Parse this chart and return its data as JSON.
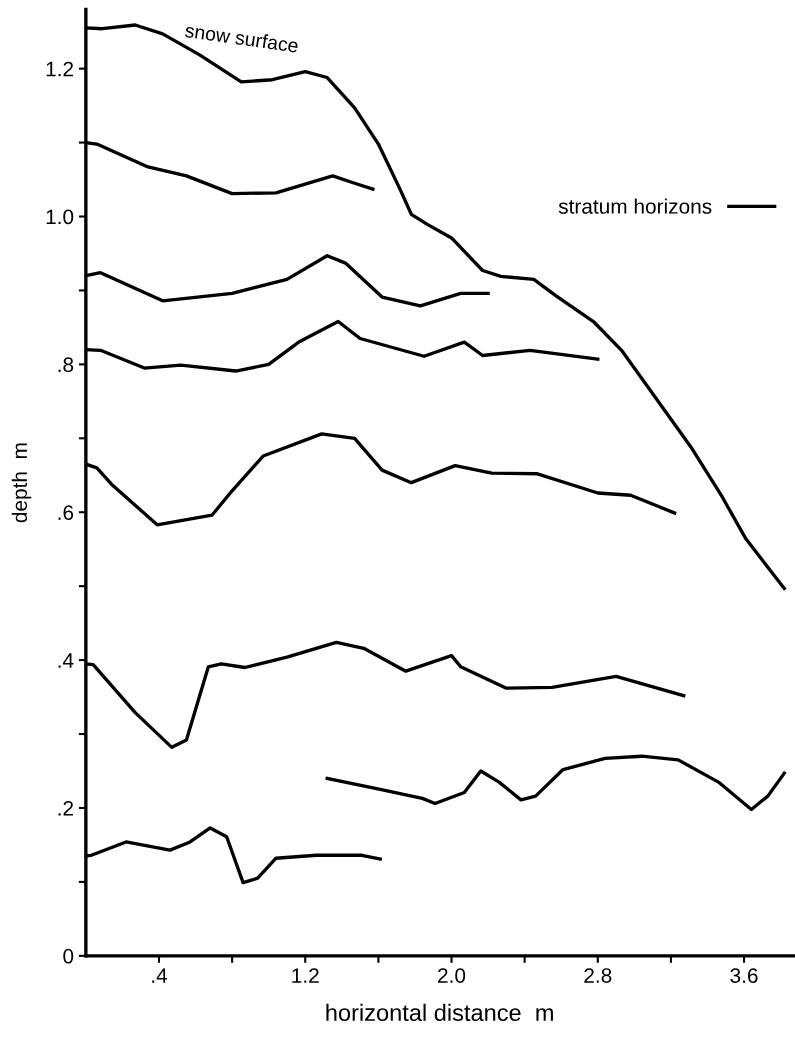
{
  "chart_data": {
    "type": "line",
    "xlabel": "horizontal distance  m",
    "ylabel": "depth  m",
    "xlim": [
      0,
      3.87
    ],
    "ylim": [
      0,
      1.28
    ],
    "xticks": [
      {
        "value": 0.4,
        "label": ".4"
      },
      {
        "value": 0.8,
        "label": null
      },
      {
        "value": 1.2,
        "label": "1.2"
      },
      {
        "value": 1.6,
        "label": null
      },
      {
        "value": 2.0,
        "label": "2.0"
      },
      {
        "value": 2.4,
        "label": null
      },
      {
        "value": 2.8,
        "label": "2.8"
      },
      {
        "value": 3.2,
        "label": null
      },
      {
        "value": 3.6,
        "label": "3.6"
      }
    ],
    "yticks": [
      0,
      {
        "value": 0.1,
        "label": null
      },
      {
        "value": 0.2,
        "label": ".2"
      },
      {
        "value": 0.3,
        "label": null
      },
      {
        "value": 0.4,
        "label": ".4"
      },
      {
        "value": 0.5,
        "label": null
      },
      {
        "value": 0.6,
        "label": ".6"
      },
      {
        "value": 0.7,
        "label": null
      },
      {
        "value": 0.8,
        "label": ".8"
      },
      {
        "value": 0.9,
        "label": null
      },
      {
        "value": 1.0,
        "label": "1.0"
      },
      {
        "value": 1.1,
        "label": null
      },
      {
        "value": 1.2,
        "label": "1.2"
      }
    ],
    "grid": false,
    "legend": "right",
    "marker": "none",
    "line_style": "solid",
    "annotations": [
      "snow surface"
    ],
    "series": [
      {
        "color": "#000000",
        "x": [
          0,
          0.09,
          0.27,
          0.42,
          0.62,
          0.85,
          1.02,
          1.2,
          1.32,
          1.47,
          1.6,
          1.72,
          1.78,
          1.87,
          2.0,
          2.17,
          2.27,
          2.45,
          2.57,
          2.78,
          2.93,
          3.13,
          3.31,
          3.48,
          3.61,
          3.82
        ],
        "values": [
          1.255,
          1.254,
          1.259,
          1.247,
          1.219,
          1.182,
          1.185,
          1.196,
          1.188,
          1.147,
          1.098,
          1.036,
          1.003,
          0.989,
          0.971,
          0.927,
          0.919,
          0.915,
          0.893,
          0.857,
          0.819,
          0.75,
          0.688,
          0.621,
          0.564,
          0.497
        ]
      },
      {
        "name": "stratum horizons",
        "color": "#000000",
        "x": [
          0,
          0.06,
          0.34,
          0.55,
          0.8,
          1.04,
          1.35,
          1.47,
          1.57
        ],
        "values": [
          1.1,
          1.098,
          1.067,
          1.055,
          1.031,
          1.032,
          1.055,
          1.045,
          1.037
        ]
      },
      {
        "color": "#000000",
        "x": [
          0,
          0.08,
          0.42,
          0.8,
          1.1,
          1.32,
          1.42,
          1.62,
          1.83,
          2.05,
          2.2
        ],
        "values": [
          0.92,
          0.924,
          0.886,
          0.896,
          0.915,
          0.947,
          0.937,
          0.891,
          0.879,
          0.896,
          0.896
        ]
      },
      {
        "color": "#000000",
        "x": [
          0,
          0.08,
          0.32,
          0.52,
          0.82,
          1.0,
          1.17,
          1.38,
          1.5,
          1.85,
          2.07,
          2.17,
          2.43,
          2.8
        ],
        "values": [
          0.82,
          0.819,
          0.795,
          0.799,
          0.791,
          0.8,
          0.831,
          0.858,
          0.835,
          0.811,
          0.83,
          0.812,
          0.819,
          0.807
        ]
      },
      {
        "color": "#000000",
        "x": [
          0,
          0.06,
          0.14,
          0.39,
          0.69,
          0.8,
          0.97,
          1.29,
          1.47,
          1.62,
          1.78,
          2.02,
          2.22,
          2.47,
          2.8,
          2.98,
          3.22
        ],
        "values": [
          0.665,
          0.66,
          0.638,
          0.583,
          0.596,
          0.629,
          0.676,
          0.706,
          0.7,
          0.657,
          0.64,
          0.663,
          0.653,
          0.652,
          0.626,
          0.623,
          0.599
        ]
      },
      {
        "color": "#000000",
        "x": [
          0,
          0.04,
          0.27,
          0.47,
          0.55,
          0.67,
          0.74,
          0.87,
          1.1,
          1.37,
          1.52,
          1.75,
          2.0,
          2.05,
          2.3,
          2.55,
          2.9,
          3.27
        ],
        "values": [
          0.395,
          0.394,
          0.329,
          0.282,
          0.292,
          0.391,
          0.395,
          0.39,
          0.404,
          0.424,
          0.416,
          0.385,
          0.406,
          0.391,
          0.362,
          0.363,
          0.378,
          0.352
        ]
      },
      {
        "color": "#000000",
        "x": [
          1.32,
          1.61,
          1.84,
          1.91,
          2.07,
          2.16,
          2.26,
          2.38,
          2.46,
          2.61,
          2.84,
          3.04,
          3.24,
          3.46,
          3.64,
          3.73,
          3.82
        ],
        "values": [
          0.24,
          0.225,
          0.213,
          0.206,
          0.221,
          0.25,
          0.235,
          0.211,
          0.216,
          0.252,
          0.267,
          0.27,
          0.265,
          0.235,
          0.198,
          0.216,
          0.247
        ]
      },
      {
        "color": "#000000",
        "x": [
          0,
          0.03,
          0.22,
          0.46,
          0.57,
          0.68,
          0.77,
          0.86,
          0.94,
          1.04,
          1.26,
          1.51,
          1.61
        ],
        "values": [
          0.135,
          0.136,
          0.154,
          0.143,
          0.154,
          0.173,
          0.161,
          0.099,
          0.105,
          0.132,
          0.136,
          0.136,
          0.131
        ]
      }
    ]
  }
}
